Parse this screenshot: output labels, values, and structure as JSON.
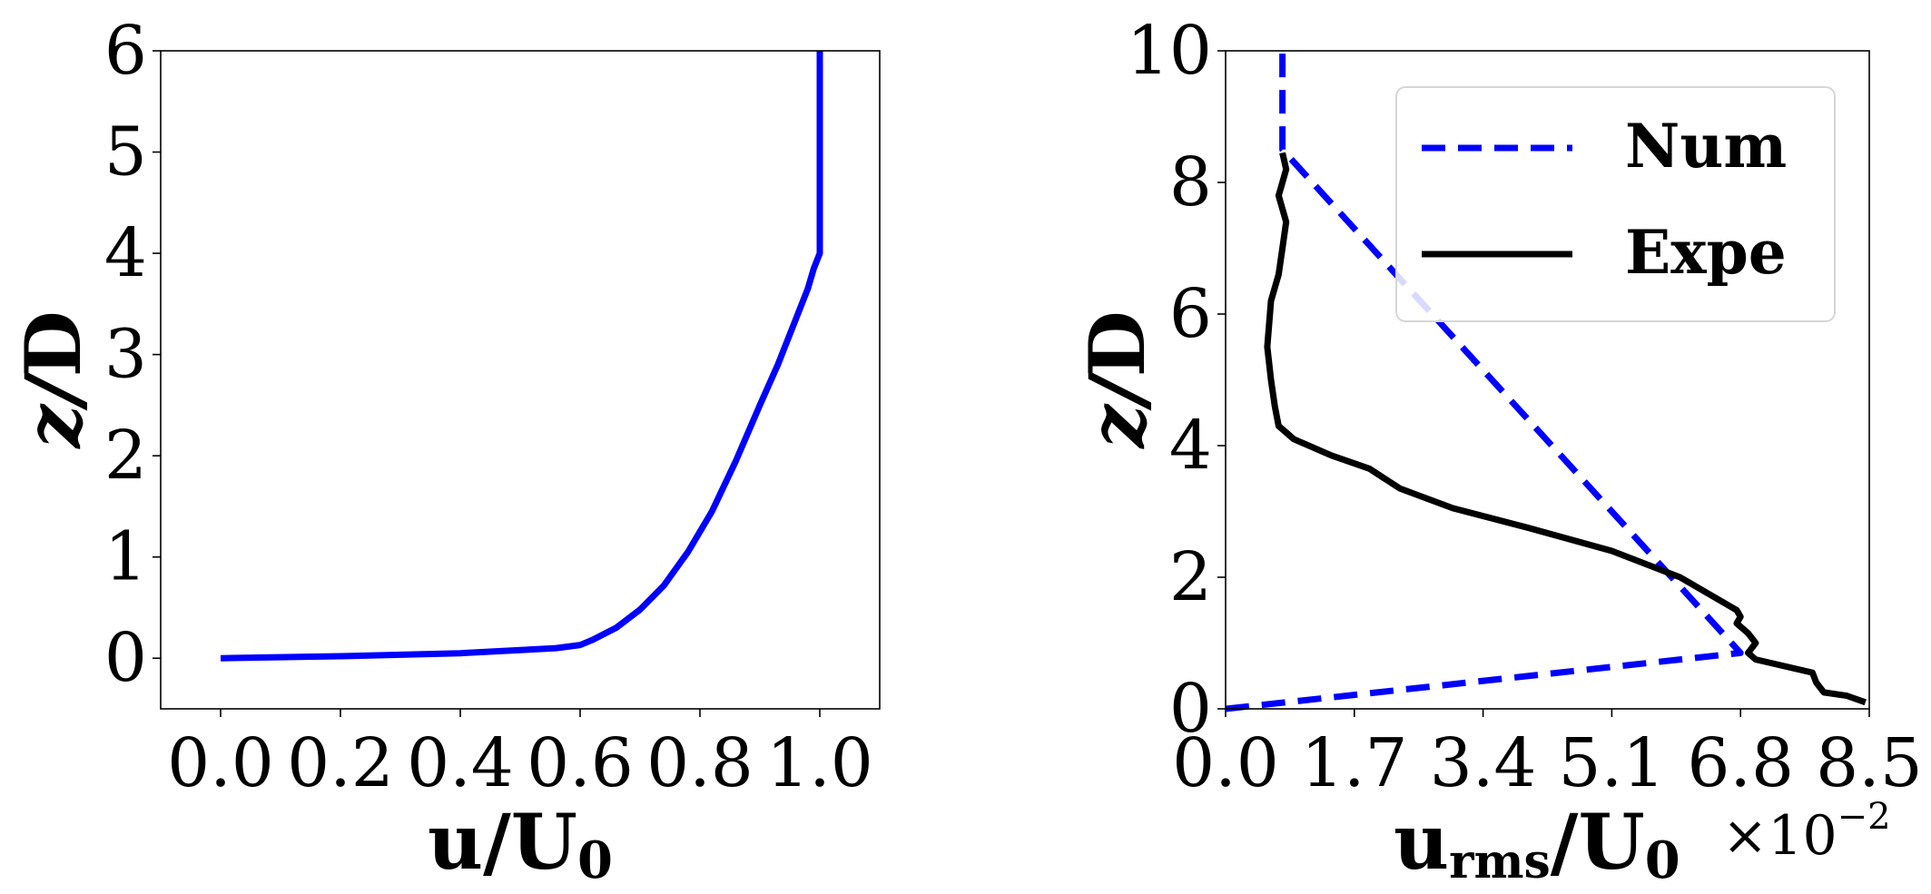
{
  "chart_data": [
    {
      "type": "line",
      "xlabel_main": "u/U",
      "xlabel_sub": "0",
      "ylabel_main": "z/",
      "ylabel_bold": "D",
      "xlim": [
        -0.1,
        1.1
      ],
      "ylim": [
        -0.5,
        6
      ],
      "xticks": [
        0.0,
        0.2,
        0.4,
        0.6,
        0.8,
        1.0
      ],
      "xtick_labels": [
        "0.0",
        "0.2",
        "0.4",
        "0.6",
        "0.8",
        "1.0"
      ],
      "yticks": [
        0,
        1,
        2,
        3,
        4,
        5,
        6
      ],
      "ytick_labels": [
        "0",
        "1",
        "2",
        "3",
        "4",
        "5",
        "6"
      ],
      "grid": false,
      "series": [
        {
          "color": "#0000ff",
          "style": "solid",
          "x": [
            0.0,
            0.2,
            0.4,
            0.5,
            0.56,
            0.6,
            0.62,
            0.66,
            0.7,
            0.74,
            0.78,
            0.82,
            0.86,
            0.9,
            0.93,
            0.96,
            0.98,
            0.99,
            1.0,
            1.0,
            1.0
          ],
          "y": [
            0.0,
            0.02,
            0.05,
            0.08,
            0.1,
            0.13,
            0.18,
            0.3,
            0.48,
            0.72,
            1.05,
            1.45,
            1.95,
            2.5,
            2.9,
            3.35,
            3.65,
            3.85,
            4.0,
            5.0,
            6.0
          ]
        }
      ]
    },
    {
      "type": "line",
      "xlabel_main": "u",
      "xlabel_sub": "rms",
      "xlabel_rest": "/U",
      "xlabel_sub2": "0",
      "x_multiplier": "×10",
      "x_multiplier_exp": "−2",
      "ylabel_main": "z/",
      "ylabel_bold": "D",
      "xlim": [
        0.0,
        8.5
      ],
      "ylim": [
        0,
        10
      ],
      "xticks": [
        0.0,
        1.7,
        3.4,
        5.1,
        6.8,
        8.5
      ],
      "xtick_labels": [
        "0.0",
        "1.7",
        "3.4",
        "5.1",
        "6.8",
        "8.5"
      ],
      "yticks": [
        0,
        2,
        4,
        6,
        8,
        10
      ],
      "ytick_labels": [
        "0",
        "2",
        "4",
        "6",
        "8",
        "10"
      ],
      "grid": false,
      "legend_position": "top-right",
      "series": [
        {
          "name": "Num",
          "color": "#0000ff",
          "style": "dashed",
          "x": [
            0.0,
            6.8,
            0.75,
            0.75
          ],
          "y": [
            0.0,
            0.85,
            8.5,
            10.0
          ]
        },
        {
          "name": "Expe",
          "color": "#000000",
          "style": "solid",
          "x": [
            8.45,
            8.2,
            7.9,
            7.8,
            7.75,
            7.0,
            6.9,
            7.0,
            6.9,
            6.75,
            6.8,
            6.75,
            6.6,
            6.0,
            5.1,
            4.0,
            3.0,
            2.3,
            1.9,
            1.4,
            0.9,
            0.7,
            0.65,
            0.6,
            0.55,
            0.6,
            0.7,
            0.75,
            0.8,
            0.7,
            0.75,
            0.8,
            0.75
          ],
          "y": [
            0.1,
            0.2,
            0.25,
            0.4,
            0.55,
            0.75,
            0.85,
            1.0,
            1.15,
            1.3,
            1.4,
            1.5,
            1.6,
            2.0,
            2.4,
            2.75,
            3.05,
            3.35,
            3.65,
            3.85,
            4.1,
            4.3,
            4.6,
            5.0,
            5.5,
            6.2,
            6.6,
            7.0,
            7.4,
            7.8,
            8.0,
            8.2,
            8.45
          ]
        }
      ]
    }
  ]
}
